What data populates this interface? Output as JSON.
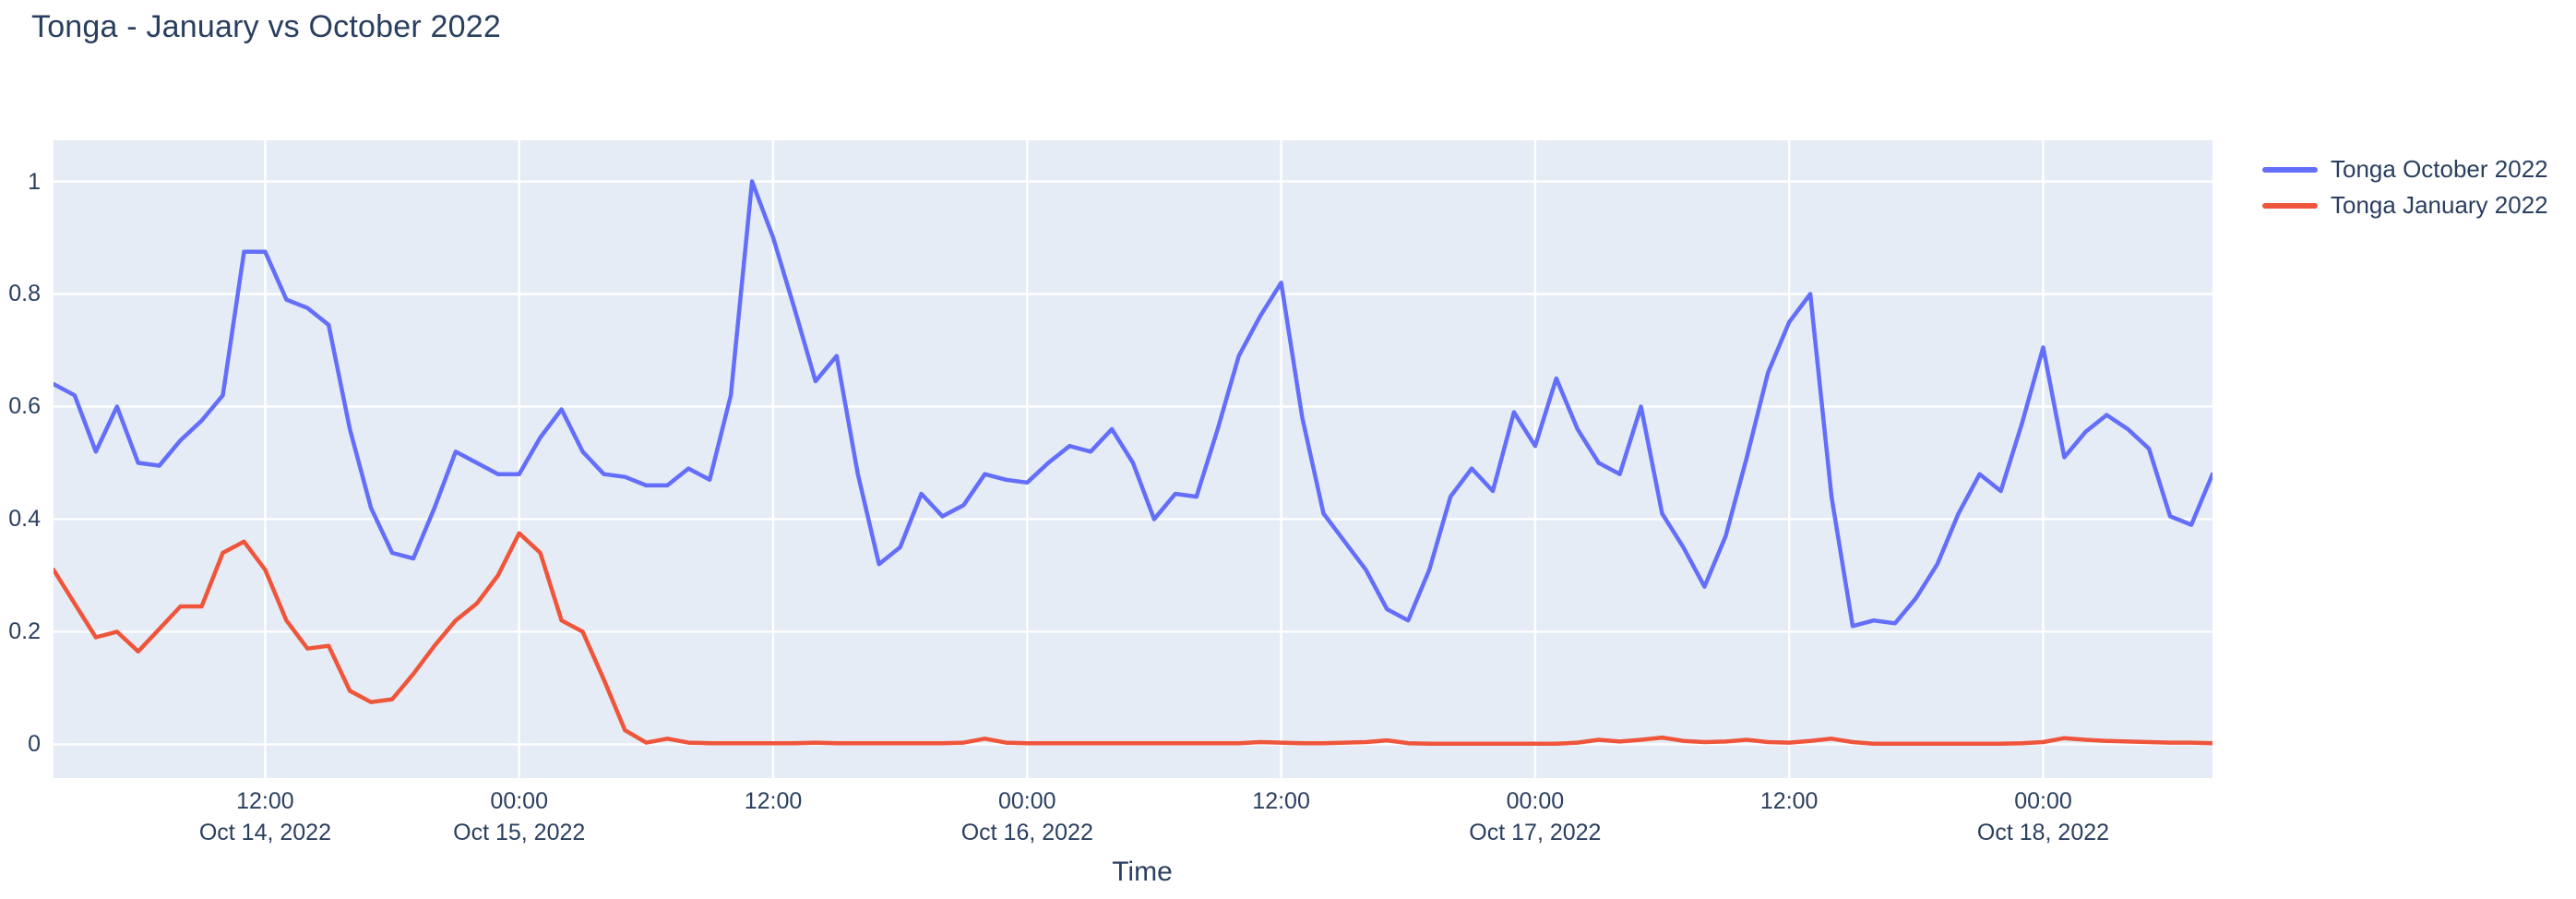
{
  "title": "Tonga - January vs October 2022",
  "colors": {
    "text": "#2a3f5f",
    "plot_background": "#e5ecf6",
    "gridline": "#ffffff",
    "october_line": "#636efa",
    "january_line": "#ef553b"
  },
  "legend": {
    "items": [
      {
        "label": "Tonga October 2022",
        "color": "#636efa"
      },
      {
        "label": "Tonga January 2022",
        "color": "#ef553b"
      }
    ]
  },
  "xaxis": {
    "title": "Time",
    "tick_labels": [
      {
        "time": "12:00",
        "date": "Oct 14, 2022"
      },
      {
        "time": "00:00",
        "date": "Oct 15, 2022"
      },
      {
        "time": "12:00",
        "date": ""
      },
      {
        "time": "00:00",
        "date": "Oct 16, 2022"
      },
      {
        "time": "12:00",
        "date": ""
      },
      {
        "time": "00:00",
        "date": "Oct 17, 2022"
      },
      {
        "time": "12:00",
        "date": ""
      },
      {
        "time": "00:00",
        "date": "Oct 18, 2022"
      }
    ]
  },
  "yaxis": {
    "tick_labels": [
      "0",
      "0.2",
      "0.4",
      "0.6",
      "0.8",
      "1"
    ],
    "tick_values": [
      0,
      0.2,
      0.4,
      0.6,
      0.8,
      1
    ]
  },
  "chart_data": {
    "type": "line",
    "title": "Tonga - January vs October 2022",
    "xlabel": "Time",
    "ylabel": "",
    "x_unit": "hourly",
    "x_start": "2022-10-14 02:00",
    "x_end": "2022-10-18 08:00",
    "xlim_hours": [
      0,
      102
    ],
    "ylim": [
      -0.06,
      1.073
    ],
    "grid": true,
    "legend_position": "right",
    "tick_hours": [
      10,
      22,
      34,
      46,
      58,
      70,
      82,
      94
    ],
    "series": [
      {
        "name": "Tonga October 2022",
        "color": "#636efa",
        "values": [
          0.64,
          0.62,
          0.52,
          0.6,
          0.5,
          0.495,
          0.54,
          0.575,
          0.62,
          0.875,
          0.875,
          0.79,
          0.775,
          0.745,
          0.56,
          0.42,
          0.34,
          0.33,
          0.42,
          0.52,
          0.5,
          0.48,
          0.48,
          0.545,
          0.595,
          0.52,
          0.48,
          0.475,
          0.46,
          0.46,
          0.49,
          0.47,
          0.62,
          1.0,
          0.9,
          0.775,
          0.645,
          0.69,
          0.48,
          0.32,
          0.35,
          0.445,
          0.405,
          0.425,
          0.48,
          0.47,
          0.465,
          0.5,
          0.53,
          0.52,
          0.56,
          0.5,
          0.4,
          0.445,
          0.44,
          0.56,
          0.69,
          0.76,
          0.82,
          0.58,
          0.41,
          0.36,
          0.31,
          0.24,
          0.22,
          0.31,
          0.44,
          0.49,
          0.45,
          0.59,
          0.53,
          0.65,
          0.56,
          0.5,
          0.48,
          0.6,
          0.41,
          0.35,
          0.28,
          0.37,
          0.51,
          0.66,
          0.75,
          0.8,
          0.44,
          0.21,
          0.22,
          0.215,
          0.26,
          0.32,
          0.41,
          0.48,
          0.45,
          0.57,
          0.705,
          0.51,
          0.555,
          0.585,
          0.56,
          0.525,
          0.405,
          0.39,
          0.48
        ]
      },
      {
        "name": "Tonga January 2022",
        "color": "#ef553b",
        "values": [
          0.31,
          0.25,
          0.19,
          0.2,
          0.165,
          0.205,
          0.245,
          0.245,
          0.34,
          0.36,
          0.31,
          0.22,
          0.17,
          0.175,
          0.095,
          0.075,
          0.08,
          0.125,
          0.175,
          0.22,
          0.25,
          0.3,
          0.375,
          0.34,
          0.22,
          0.2,
          0.115,
          0.025,
          0.003,
          0.01,
          0.003,
          0.002,
          0.002,
          0.002,
          0.002,
          0.002,
          0.003,
          0.002,
          0.002,
          0.002,
          0.002,
          0.002,
          0.002,
          0.003,
          0.01,
          0.003,
          0.002,
          0.002,
          0.002,
          0.002,
          0.002,
          0.002,
          0.002,
          0.002,
          0.002,
          0.002,
          0.002,
          0.004,
          0.003,
          0.002,
          0.002,
          0.003,
          0.004,
          0.007,
          0.002,
          0.001,
          0.001,
          0.001,
          0.001,
          0.001,
          0.001,
          0.001,
          0.003,
          0.008,
          0.005,
          0.008,
          0.012,
          0.006,
          0.004,
          0.005,
          0.008,
          0.004,
          0.003,
          0.006,
          0.01,
          0.004,
          0.001,
          0.001,
          0.001,
          0.001,
          0.001,
          0.001,
          0.001,
          0.002,
          0.004,
          0.011,
          0.008,
          0.006,
          0.005,
          0.004,
          0.003,
          0.003,
          0.002
        ]
      }
    ]
  }
}
